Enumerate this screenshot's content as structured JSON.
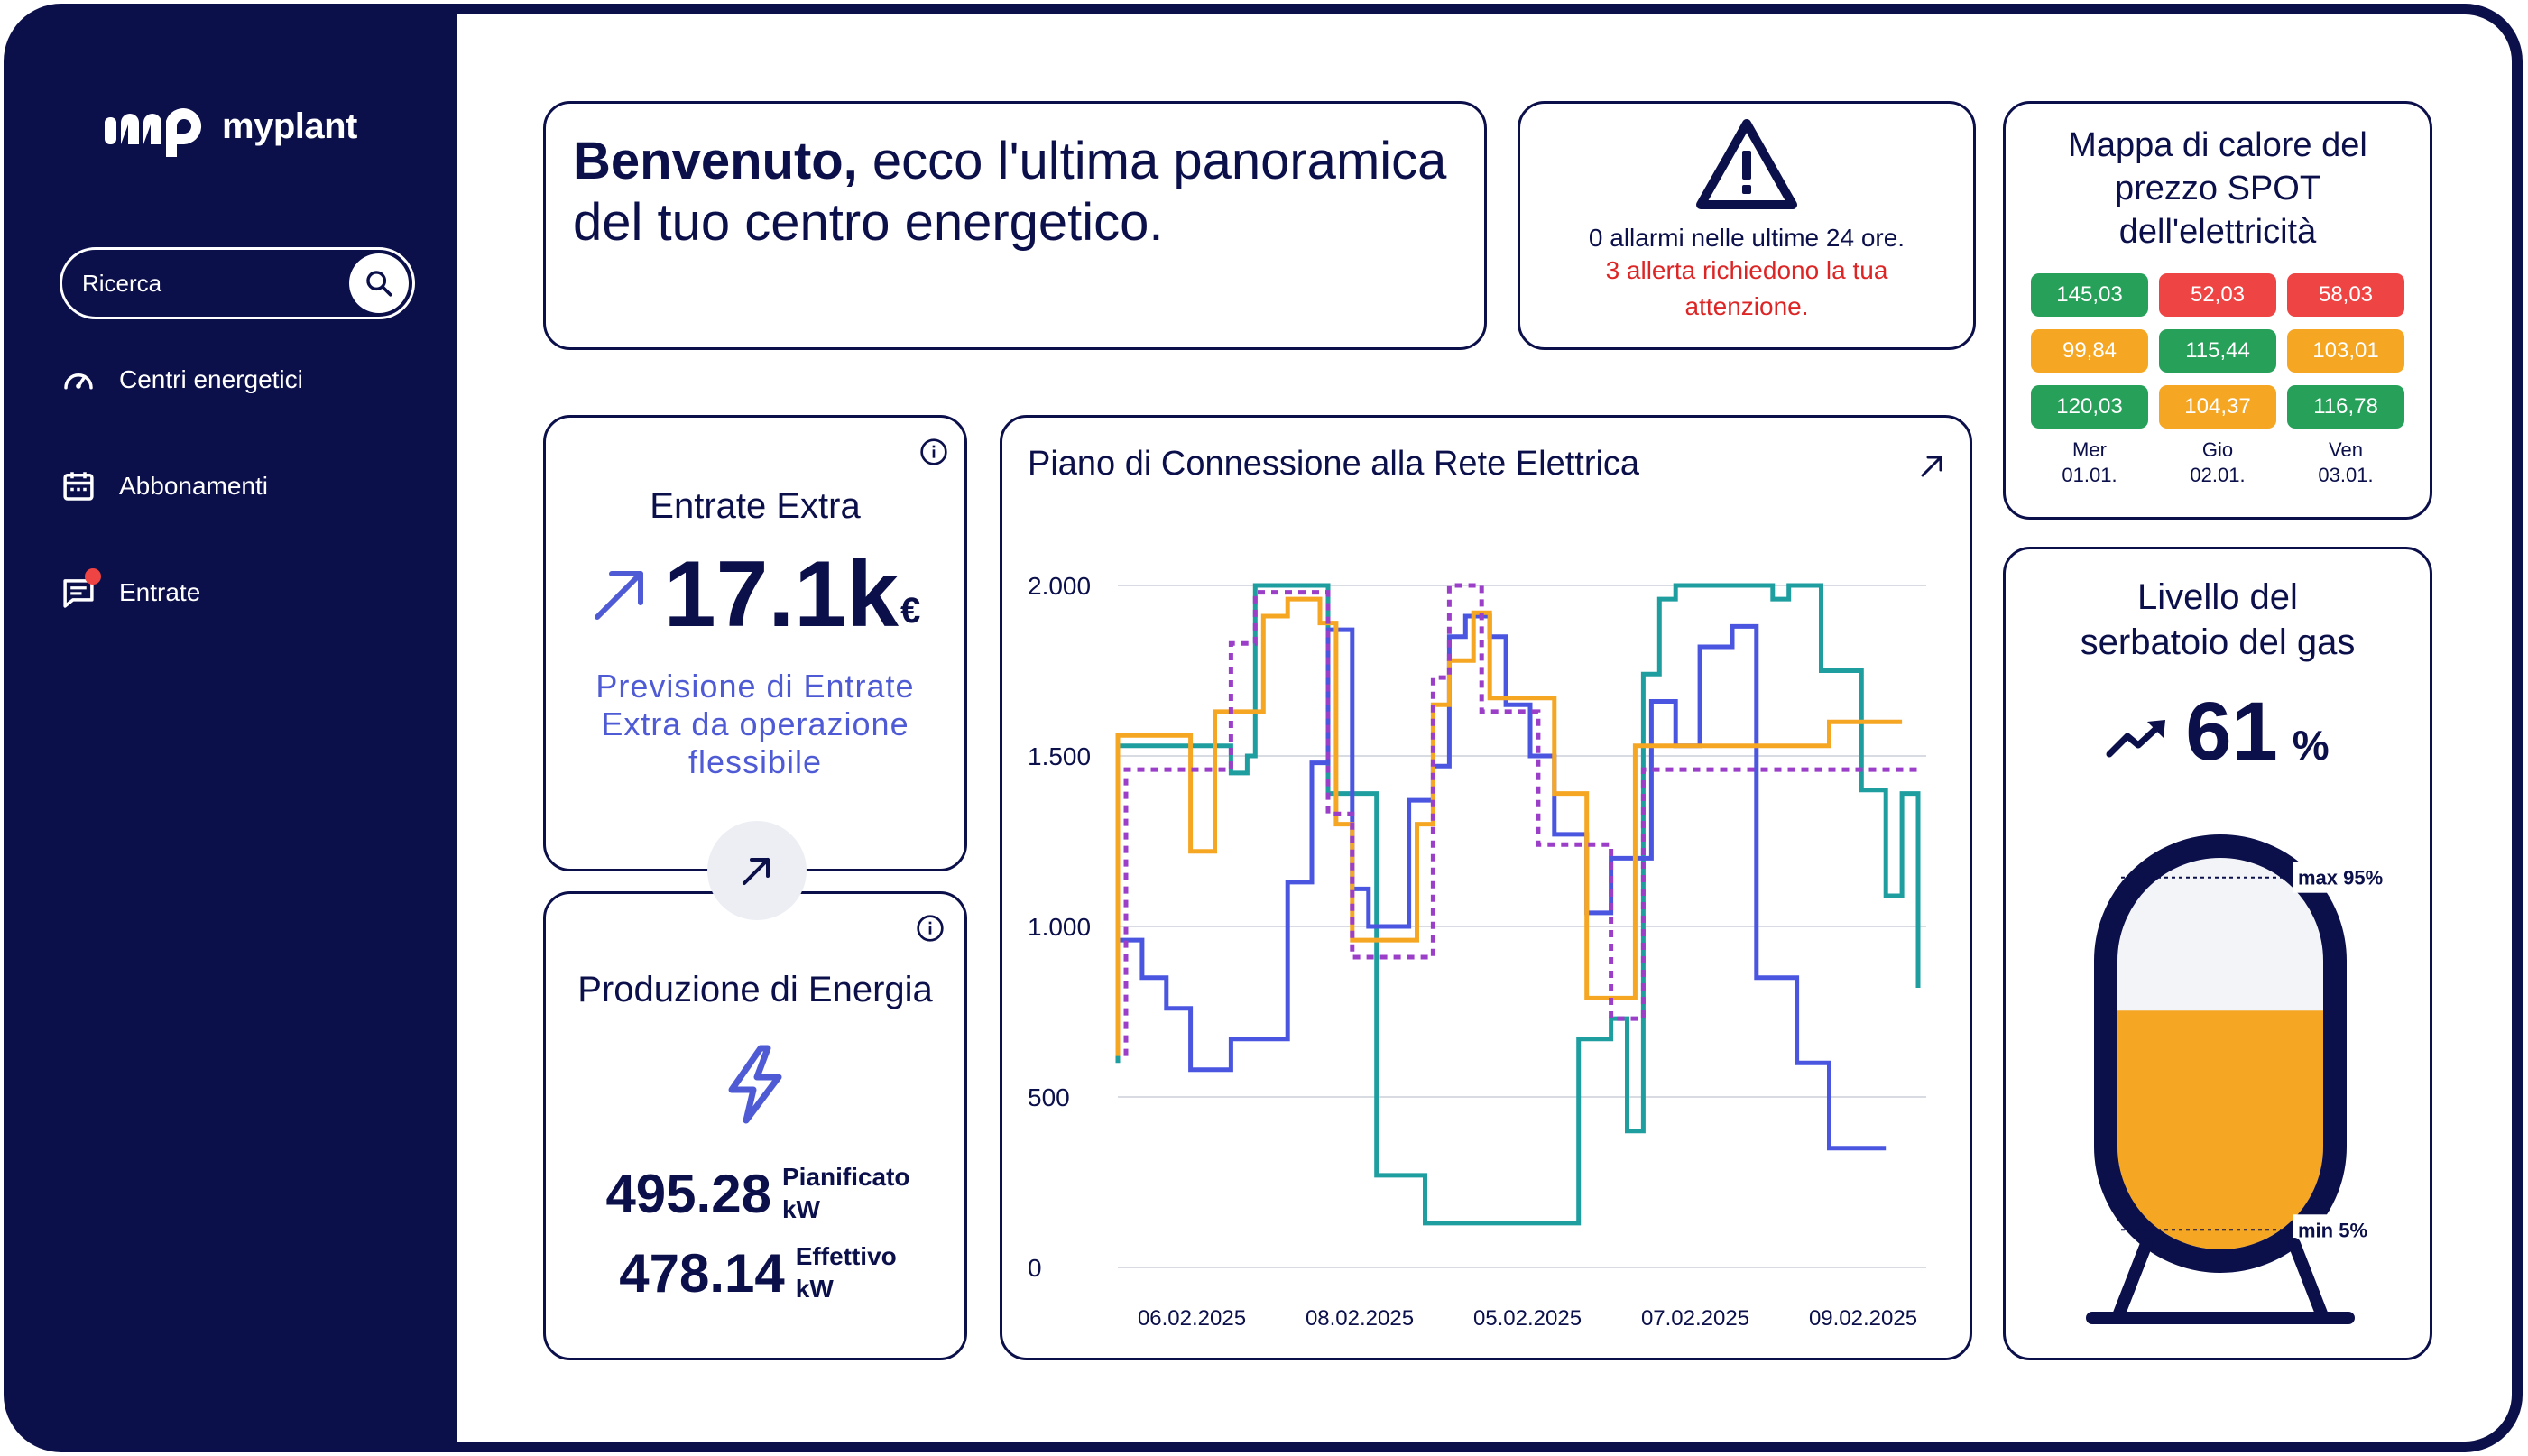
{
  "app": {
    "name": "myplant"
  },
  "search": {
    "placeholder": "Ricerca"
  },
  "sidebar": {
    "items": [
      {
        "label": "Centri energetici",
        "icon": "speedometer-icon"
      },
      {
        "label": "Abbonamenti",
        "icon": "calendar-icon"
      },
      {
        "label": "Entrate",
        "icon": "message-icon",
        "notification": true
      }
    ]
  },
  "welcome": {
    "bold": "Benvenuto,",
    "text": " ecco l'ultima panoramica del tuo centro energetico."
  },
  "alarm": {
    "line1": "0 allarmi nelle ultime 24 ore.",
    "line2": "3 allerta richiedono la tua attenzione.",
    "icon": "warning-icon"
  },
  "heatmap": {
    "title": "Mappa di calore del prezzo SPOT dell'elettricità",
    "cells": [
      {
        "value": "145,03",
        "color": "#27a15a"
      },
      {
        "value": "52,03",
        "color": "#ef4444"
      },
      {
        "value": "58,03",
        "color": "#ef4444"
      },
      {
        "value": "99,84",
        "color": "#f5a623"
      },
      {
        "value": "115,44",
        "color": "#27a15a"
      },
      {
        "value": "103,01",
        "color": "#f5a623"
      },
      {
        "value": "120,03",
        "color": "#27a15a"
      },
      {
        "value": "104,37",
        "color": "#f5a623"
      },
      {
        "value": "116,78",
        "color": "#27a15a"
      }
    ],
    "days": [
      {
        "day": "Mer",
        "date": "01.01."
      },
      {
        "day": "Gio",
        "date": "02.01."
      },
      {
        "day": "Ven",
        "date": "03.01."
      }
    ]
  },
  "gas": {
    "title": "Livello del serbatoio del gas",
    "value": "61",
    "unit": "%",
    "level": 0.61,
    "max_label": "max 95%",
    "min_label": "min 5%",
    "fill_color": "#f5a623"
  },
  "extra": {
    "title": "Entrate Extra",
    "value": "17.1k",
    "unit": "€",
    "description": "Previsione di Entrate Extra da operazione flessibile"
  },
  "production": {
    "title": "Produzione di Energia",
    "planned_value": "495.28",
    "planned_label": "Pianificato",
    "planned_unit": "kW",
    "actual_value": "478.14",
    "actual_label": "Effettivo",
    "actual_unit": "kW"
  },
  "chart_data": {
    "type": "line",
    "title": "Piano di Connessione alla Rete Elettrica",
    "xlabel": "",
    "ylabel": "",
    "ylim": [
      0,
      2000
    ],
    "yticks": [
      0,
      500,
      1000,
      1500,
      2000
    ],
    "ytick_labels": [
      "0",
      "500",
      "1.000",
      "1.500",
      "2.000"
    ],
    "xtick_labels": [
      "06.02.2025",
      "08.02.2025",
      "05.02.2025",
      "07.02.2025",
      "09.02.2025"
    ],
    "grid": true,
    "step": true,
    "series": [
      {
        "color": "#1f9ea0",
        "dashed": false,
        "points": [
          [
            0,
            600
          ],
          [
            0,
            1530
          ],
          [
            0.14,
            1530
          ],
          [
            0.14,
            1450
          ],
          [
            0.16,
            1450
          ],
          [
            0.16,
            1500
          ],
          [
            0.17,
            1500
          ],
          [
            0.17,
            2000
          ],
          [
            0.26,
            2000
          ],
          [
            0.26,
            1390
          ],
          [
            0.32,
            1390
          ],
          [
            0.32,
            270
          ],
          [
            0.38,
            270
          ],
          [
            0.38,
            130
          ],
          [
            0.57,
            130
          ],
          [
            0.57,
            670
          ],
          [
            0.61,
            670
          ],
          [
            0.61,
            730
          ],
          [
            0.63,
            730
          ],
          [
            0.63,
            400
          ],
          [
            0.65,
            400
          ],
          [
            0.65,
            1740
          ],
          [
            0.67,
            1740
          ],
          [
            0.67,
            1960
          ],
          [
            0.69,
            1960
          ],
          [
            0.69,
            2000
          ],
          [
            0.81,
            2000
          ],
          [
            0.81,
            1960
          ],
          [
            0.83,
            1960
          ],
          [
            0.83,
            2000
          ],
          [
            0.87,
            2000
          ],
          [
            0.87,
            1750
          ],
          [
            0.92,
            1750
          ],
          [
            0.92,
            1400
          ],
          [
            0.95,
            1400
          ],
          [
            0.95,
            1090
          ],
          [
            0.97,
            1090
          ],
          [
            0.97,
            1390
          ],
          [
            0.99,
            1390
          ],
          [
            0.99,
            820
          ]
        ]
      },
      {
        "color": "#4a55e0",
        "dashed": false,
        "points": [
          [
            0,
            960
          ],
          [
            0.03,
            960
          ],
          [
            0.03,
            850
          ],
          [
            0.06,
            850
          ],
          [
            0.06,
            760
          ],
          [
            0.09,
            760
          ],
          [
            0.09,
            580
          ],
          [
            0.14,
            580
          ],
          [
            0.14,
            670
          ],
          [
            0.21,
            670
          ],
          [
            0.21,
            1130
          ],
          [
            0.24,
            1130
          ],
          [
            0.24,
            1480
          ],
          [
            0.26,
            1480
          ],
          [
            0.26,
            1870
          ],
          [
            0.29,
            1870
          ],
          [
            0.29,
            1110
          ],
          [
            0.31,
            1110
          ],
          [
            0.31,
            1000
          ],
          [
            0.36,
            1000
          ],
          [
            0.36,
            1370
          ],
          [
            0.39,
            1370
          ],
          [
            0.39,
            1470
          ],
          [
            0.41,
            1470
          ],
          [
            0.41,
            1850
          ],
          [
            0.43,
            1850
          ],
          [
            0.43,
            1910
          ],
          [
            0.46,
            1910
          ],
          [
            0.46,
            1850
          ],
          [
            0.48,
            1850
          ],
          [
            0.48,
            1650
          ],
          [
            0.51,
            1650
          ],
          [
            0.51,
            1500
          ],
          [
            0.54,
            1500
          ],
          [
            0.54,
            1270
          ],
          [
            0.58,
            1270
          ],
          [
            0.58,
            1040
          ],
          [
            0.61,
            1040
          ],
          [
            0.61,
            1200
          ],
          [
            0.66,
            1200
          ],
          [
            0.66,
            1660
          ],
          [
            0.69,
            1660
          ],
          [
            0.69,
            1530
          ],
          [
            0.72,
            1530
          ],
          [
            0.72,
            1820
          ],
          [
            0.76,
            1820
          ],
          [
            0.76,
            1880
          ],
          [
            0.79,
            1880
          ],
          [
            0.79,
            850
          ],
          [
            0.84,
            850
          ],
          [
            0.84,
            600
          ],
          [
            0.88,
            600
          ],
          [
            0.88,
            350
          ],
          [
            0.95,
            350
          ]
        ]
      },
      {
        "color": "#f5a623",
        "dashed": false,
        "points": [
          [
            0,
            620
          ],
          [
            0,
            1560
          ],
          [
            0.09,
            1560
          ],
          [
            0.09,
            1220
          ],
          [
            0.12,
            1220
          ],
          [
            0.12,
            1630
          ],
          [
            0.18,
            1630
          ],
          [
            0.18,
            1910
          ],
          [
            0.21,
            1910
          ],
          [
            0.21,
            1960
          ],
          [
            0.25,
            1960
          ],
          [
            0.25,
            1890
          ],
          [
            0.27,
            1890
          ],
          [
            0.27,
            1300
          ],
          [
            0.29,
            1300
          ],
          [
            0.29,
            960
          ],
          [
            0.37,
            960
          ],
          [
            0.37,
            1300
          ],
          [
            0.39,
            1300
          ],
          [
            0.39,
            1650
          ],
          [
            0.41,
            1650
          ],
          [
            0.41,
            1780
          ],
          [
            0.44,
            1780
          ],
          [
            0.44,
            1920
          ],
          [
            0.46,
            1920
          ],
          [
            0.46,
            1670
          ],
          [
            0.54,
            1670
          ],
          [
            0.54,
            1390
          ],
          [
            0.58,
            1390
          ],
          [
            0.58,
            790
          ],
          [
            0.64,
            790
          ],
          [
            0.64,
            1530
          ],
          [
            0.88,
            1530
          ],
          [
            0.88,
            1600
          ],
          [
            0.97,
            1600
          ]
        ]
      },
      {
        "color": "#9b3fc9",
        "dashed": true,
        "points": [
          [
            0.01,
            620
          ],
          [
            0.01,
            1460
          ],
          [
            0.14,
            1460
          ],
          [
            0.14,
            1830
          ],
          [
            0.17,
            1830
          ],
          [
            0.17,
            1980
          ],
          [
            0.26,
            1980
          ],
          [
            0.26,
            1330
          ],
          [
            0.29,
            1330
          ],
          [
            0.29,
            910
          ],
          [
            0.39,
            910
          ],
          [
            0.39,
            1730
          ],
          [
            0.41,
            1730
          ],
          [
            0.41,
            2000
          ],
          [
            0.45,
            2000
          ],
          [
            0.45,
            1630
          ],
          [
            0.52,
            1630
          ],
          [
            0.52,
            1240
          ],
          [
            0.61,
            1240
          ],
          [
            0.61,
            730
          ],
          [
            0.65,
            730
          ],
          [
            0.65,
            1460
          ],
          [
            0.99,
            1460
          ]
        ]
      }
    ]
  }
}
